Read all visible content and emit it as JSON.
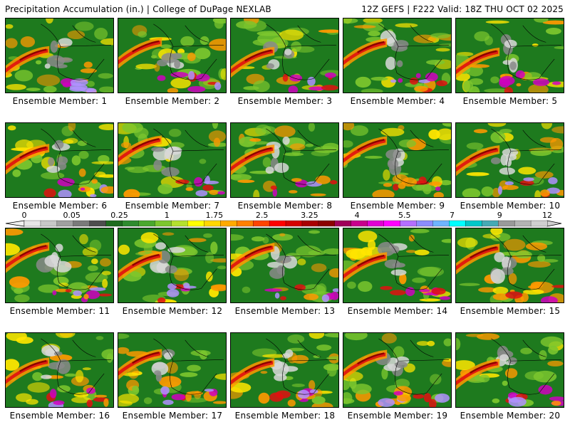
{
  "header": {
    "title_left": "Precipitation Accumulation (in.) | College of DuPage NEXLAB",
    "title_right": "12Z GEFS | F222 Valid: 18Z THU OCT 02 2025"
  },
  "panels": [
    {
      "label": "Ensemble Member: 1"
    },
    {
      "label": "Ensemble Member: 2"
    },
    {
      "label": "Ensemble Member: 3"
    },
    {
      "label": "Ensemble Member: 4"
    },
    {
      "label": "Ensemble Member: 5"
    },
    {
      "label": "Ensemble Member: 6"
    },
    {
      "label": "Ensemble Member: 7"
    },
    {
      "label": "Ensemble Member: 8"
    },
    {
      "label": "Ensemble Member: 9"
    },
    {
      "label": "Ensemble Member: 10"
    },
    {
      "label": "Ensemble Member: 11"
    },
    {
      "label": "Ensemble Member: 12"
    },
    {
      "label": "Ensemble Member: 13"
    },
    {
      "label": "Ensemble Member: 14"
    },
    {
      "label": "Ensemble Member: 15"
    },
    {
      "label": "Ensemble Member: 16"
    },
    {
      "label": "Ensemble Member: 17"
    },
    {
      "label": "Ensemble Member: 18"
    },
    {
      "label": "Ensemble Member: 19"
    },
    {
      "label": "Ensemble Member: 20"
    }
  ],
  "legend": {
    "tick_labels": [
      "0",
      "0.05",
      "0.25",
      "1",
      "1.75",
      "2.5",
      "3.25",
      "4",
      "5.5",
      "7",
      "9",
      "12"
    ],
    "colors": [
      "#e6e6e6",
      "#c8c8c8",
      "#a0a0a0",
      "#7a7a7a",
      "#4d4d4d",
      "#1e6b1e",
      "#2e8b2e",
      "#4aa82e",
      "#7cc62e",
      "#b4e02e",
      "#ffff00",
      "#ffd700",
      "#ffaa00",
      "#ff8000",
      "#ff4500",
      "#ff0000",
      "#d40000",
      "#a80000",
      "#8b0000",
      "#a0005a",
      "#c8008c",
      "#e000d2",
      "#ff00ff",
      "#b46eff",
      "#8c8cff",
      "#6eb4ff",
      "#00ffff",
      "#00c8c8",
      "#46aab4",
      "#9a9a9a",
      "#b4b4b4",
      "#cfcfcf"
    ]
  },
  "map_colors": {
    "green": "#1e7a1e",
    "light_green": "#7cc62e",
    "yellow": "#ffe600",
    "orange": "#ff9900",
    "red": "#e01010",
    "dark_red": "#8b0000",
    "magenta": "#d000c0",
    "lavender": "#b090ff",
    "light_gray": "#d8d8d8",
    "gray": "#8a8a8a",
    "blue": "#6fa8ff"
  }
}
